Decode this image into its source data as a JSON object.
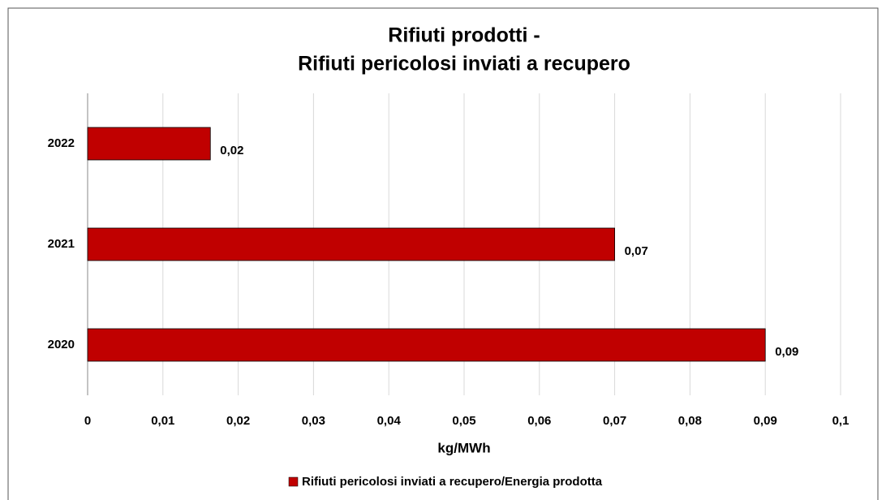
{
  "chart_data": {
    "type": "bar",
    "orientation": "horizontal",
    "title": [
      "Rifiuti prodotti -",
      "Rifiuti pericolosi inviati a recupero"
    ],
    "x_label": "kg/MWh",
    "categories": [
      "2022",
      "2021",
      "2020"
    ],
    "series": [
      {
        "name": "Rifiuti pericolosi inviati a recupero/Energia prodotta",
        "color": "#c00000",
        "values": [
          0.0163,
          0.07,
          0.09
        ],
        "value_labels": [
          "0,02",
          "0,07",
          "0,09"
        ]
      }
    ],
    "xlim": [
      0,
      0.1
    ],
    "xticks": [
      0,
      {
        "value": 0.01,
        "label": "0,01"
      },
      {
        "value": 0.02,
        "label": "0,02"
      },
      {
        "value": 0.03,
        "label": "0,03"
      },
      {
        "value": 0.04,
        "label": "0,04"
      },
      {
        "value": 0.05,
        "label": "0,05"
      },
      {
        "value": 0.06,
        "label": "0,06"
      },
      {
        "value": 0.07,
        "label": "0,07"
      },
      {
        "value": 0.08,
        "label": "0,08"
      },
      {
        "value": 0.09,
        "label": "0,09"
      },
      {
        "value": 0.1,
        "label": "0,1"
      }
    ],
    "grid": true,
    "legend": "bottom"
  }
}
